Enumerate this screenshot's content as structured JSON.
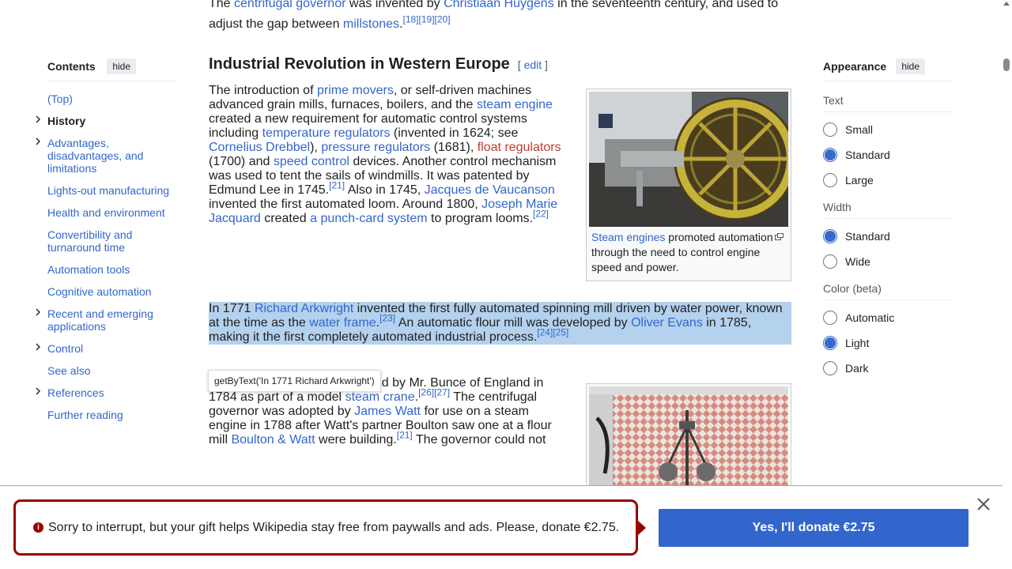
{
  "top_para": {
    "t1": "The ",
    "l1": "centrifugal governor",
    "t2": " was invented by ",
    "l2": "Christiaan Huygens",
    "t3": " in the seventeenth century, and used to adjust the gap between ",
    "l3": "millstones",
    "t4": ".",
    "refs": "[18][19][20]"
  },
  "toc": {
    "title": "Contents",
    "hide": "hide",
    "items": [
      {
        "label": "(Top)",
        "chevron": false,
        "bold": false
      },
      {
        "label": "History",
        "chevron": true,
        "bold": true
      },
      {
        "label": "Advantages, disadvantages, and limitations",
        "chevron": true,
        "bold": false
      },
      {
        "label": "Lights-out manufacturing",
        "chevron": false,
        "bold": false
      },
      {
        "label": "Health and environment",
        "chevron": false,
        "bold": false
      },
      {
        "label": "Convertibility and turnaround time",
        "chevron": false,
        "bold": false
      },
      {
        "label": "Automation tools",
        "chevron": false,
        "bold": false
      },
      {
        "label": "Cognitive automation",
        "chevron": false,
        "bold": false
      },
      {
        "label": "Recent and emerging applications",
        "chevron": true,
        "bold": false
      },
      {
        "label": "Control",
        "chevron": true,
        "bold": false
      },
      {
        "label": "See also",
        "chevron": false,
        "bold": false
      },
      {
        "label": "References",
        "chevron": true,
        "bold": false
      },
      {
        "label": "Further reading",
        "chevron": false,
        "bold": false
      }
    ]
  },
  "section": {
    "heading": "Industrial Revolution in Western Europe",
    "edit": "[ edit ]"
  },
  "para1": {
    "t1": "The introduction of ",
    "l1": "prime movers",
    "t2": ", or self-driven machines advanced grain mills, furnaces, boilers, and the ",
    "l2": "steam engine",
    "t3": " created a new requirement for automatic control systems including ",
    "l3": "temperature regulators",
    "t4": " (invented in 1624; see ",
    "l4": "Cornelius Drebbel",
    "t5": "), ",
    "l5": "pressure regulators",
    "t6": " (1681), ",
    "l6": "float regulators",
    "t7": " (1700) and ",
    "l7": "speed control",
    "t8": " devices. Another control mechanism was used to tent the sails of windmills. It was patented by Edmund Lee in 1745.",
    "r1": "[21]",
    "t9": " Also in 1745, ",
    "l8": "Jacques de Vaucanson",
    "t10": " invented the first automated loom. Around 1800, ",
    "l9": "Joseph Marie Jacquard",
    "t11": " created ",
    "l10": "a punch-card system",
    "t12": " to program looms.",
    "r2": "[22]"
  },
  "figure1": {
    "link": "Steam engines",
    "caption": " promoted automation through the need to control engine speed and power."
  },
  "para2": {
    "t1": "In 1771 ",
    "l1": "Richard Arkwright",
    "t2": " invented the first fully automated spinning mill driven by water power, known at the time as the ",
    "l2": "water frame",
    "t3": ".",
    "r1": "[23]",
    "t4": " An automatic flour mill was developed by ",
    "l3": "Oliver Evans",
    "t5": " in 1785, making it the first completely automated industrial process.",
    "r2": "[24][25]"
  },
  "tooltip": "getByText('In 1771 Richard Arkwright')",
  "para3": {
    "t0": "A centrifugal governor was used by Mr. Bunce of England in 1784 as part of a model ",
    "l1": "steam crane",
    "t1": ".",
    "r1": "[26][27]",
    "t2": " The centrifugal governor was adopted by ",
    "l2": "James Watt",
    "t3": " for use on a steam engine in 1788 after Watt's partner Boulton saw one at a flour mill ",
    "l3": "Boulton & Watt",
    "t4": " were building.",
    "r2": "[21]",
    "t5": " The governor could not"
  },
  "appearance": {
    "title": "Appearance",
    "hide": "hide",
    "text_label": "Text",
    "text_options": [
      "Small",
      "Standard",
      "Large"
    ],
    "text_selected": "Standard",
    "width_label": "Width",
    "width_options": [
      "Standard",
      "Wide"
    ],
    "width_selected": "Standard",
    "color_label": "Color (beta)",
    "color_options": [
      "Automatic",
      "Light",
      "Dark"
    ],
    "color_selected": "Light"
  },
  "banner": {
    "message": "Sorry to interrupt, but your gift helps Wikipedia stay free from paywalls and ads. Please, donate €2.75.",
    "button": "Yes, I'll donate €2.75"
  },
  "colors": {
    "link": "#3366cc",
    "redlink": "#bf3c2c",
    "selection": "#b4d1ee",
    "banner_border": "#990000",
    "donate_button": "#3366cc"
  }
}
